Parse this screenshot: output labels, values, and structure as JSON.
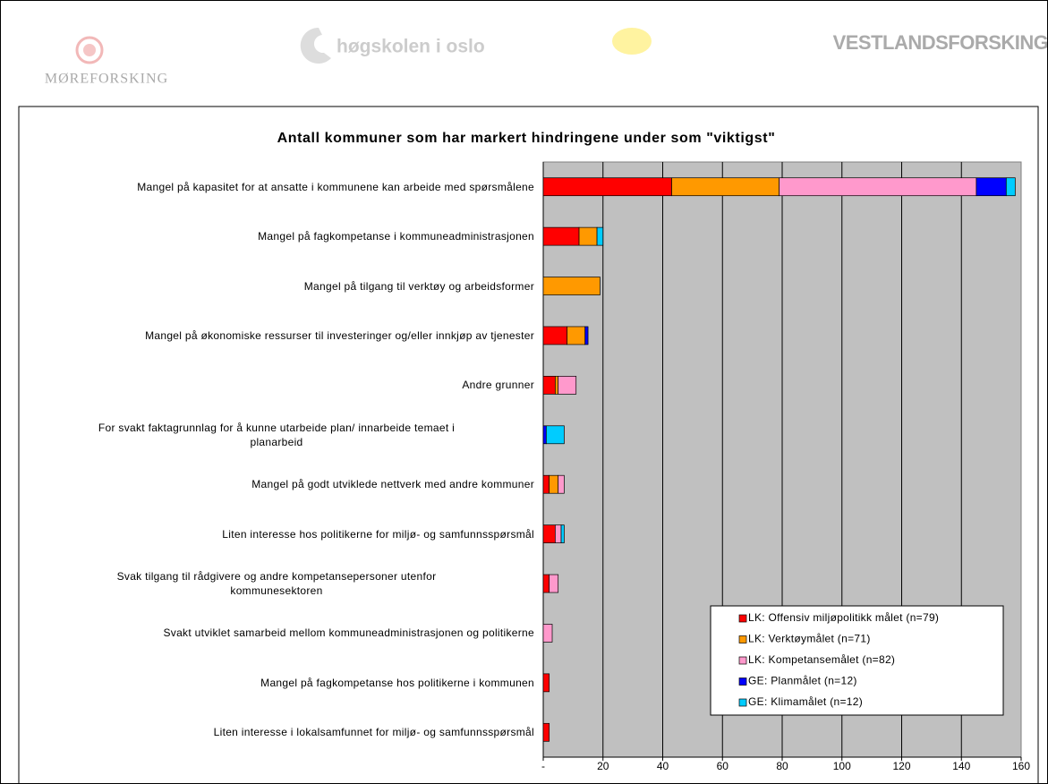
{
  "header": {
    "logos": [
      "MØREFORSKING",
      "høgskolen i oslo",
      "VESTLANDSFORSKING"
    ]
  },
  "chart_data": {
    "type": "stacked-barh",
    "title": "Antall kommuner som har markert hindringene under som \"viktigst\"",
    "categories": [
      "Mangel på kapasitet for at ansatte i kommunene kan arbeide med spørsmålene",
      "Mangel på fagkompetanse i kommuneadministrasjonen",
      "Mangel på tilgang til verktøy og arbeidsformer",
      "Mangel på økonomiske ressurser til investeringer og/eller innkjøp av tjenester",
      "Andre grunner",
      "For svakt faktagrunnlag for å kunne utarbeide plan/ innarbeide temaet i\nplanarbeid",
      "Mangel på godt utviklede nettverk med andre kommuner",
      "Liten interesse hos politikerne for miljø- og samfunnsspørsmål",
      "Svak tilgang til rådgivere og andre kompetansepersoner utenfor\nkommunesektoren",
      "Svakt utviklet samarbeid mellom kommuneadministrasjonen og politikerne",
      "Mangel på fagkompetanse hos politikerne i kommunen",
      "Liten interesse i lokalsamfunnet for miljø- og samfunnsspørsmål"
    ],
    "series": [
      {
        "name": "LK: Offensiv miljøpolitikk målet (n=79)",
        "color": "#ff0000",
        "values": [
          43,
          12,
          0,
          8,
          4,
          0,
          2,
          4,
          2,
          0,
          2,
          2
        ]
      },
      {
        "name": "LK: Verktøymålet (n=71)",
        "color": "#ff9900",
        "values": [
          36,
          6,
          19,
          6,
          1,
          0,
          3,
          0,
          0,
          0,
          0,
          0
        ]
      },
      {
        "name": "LK: Kompetansemålet (n=82)",
        "color": "#ff99cc",
        "values": [
          66,
          0,
          0,
          0,
          6,
          0,
          2,
          2,
          3,
          3,
          0,
          0
        ]
      },
      {
        "name": "GE: Planmålet (n=12)",
        "color": "#0000ff",
        "values": [
          10,
          0,
          0,
          1,
          0,
          1,
          0,
          0,
          0,
          0,
          0,
          0
        ]
      },
      {
        "name": "GE: Klimamålet (n=12)",
        "color": "#00ccff",
        "values": [
          3,
          2,
          0,
          0,
          0,
          6,
          0,
          1,
          0,
          0,
          0,
          0
        ]
      }
    ],
    "xlim": [
      0,
      160
    ],
    "xticks": [
      {
        "value": 0,
        "label": "-"
      },
      20,
      40,
      60,
      80,
      100,
      120,
      140,
      160
    ],
    "grid": true,
    "legend": "bottom-right"
  }
}
